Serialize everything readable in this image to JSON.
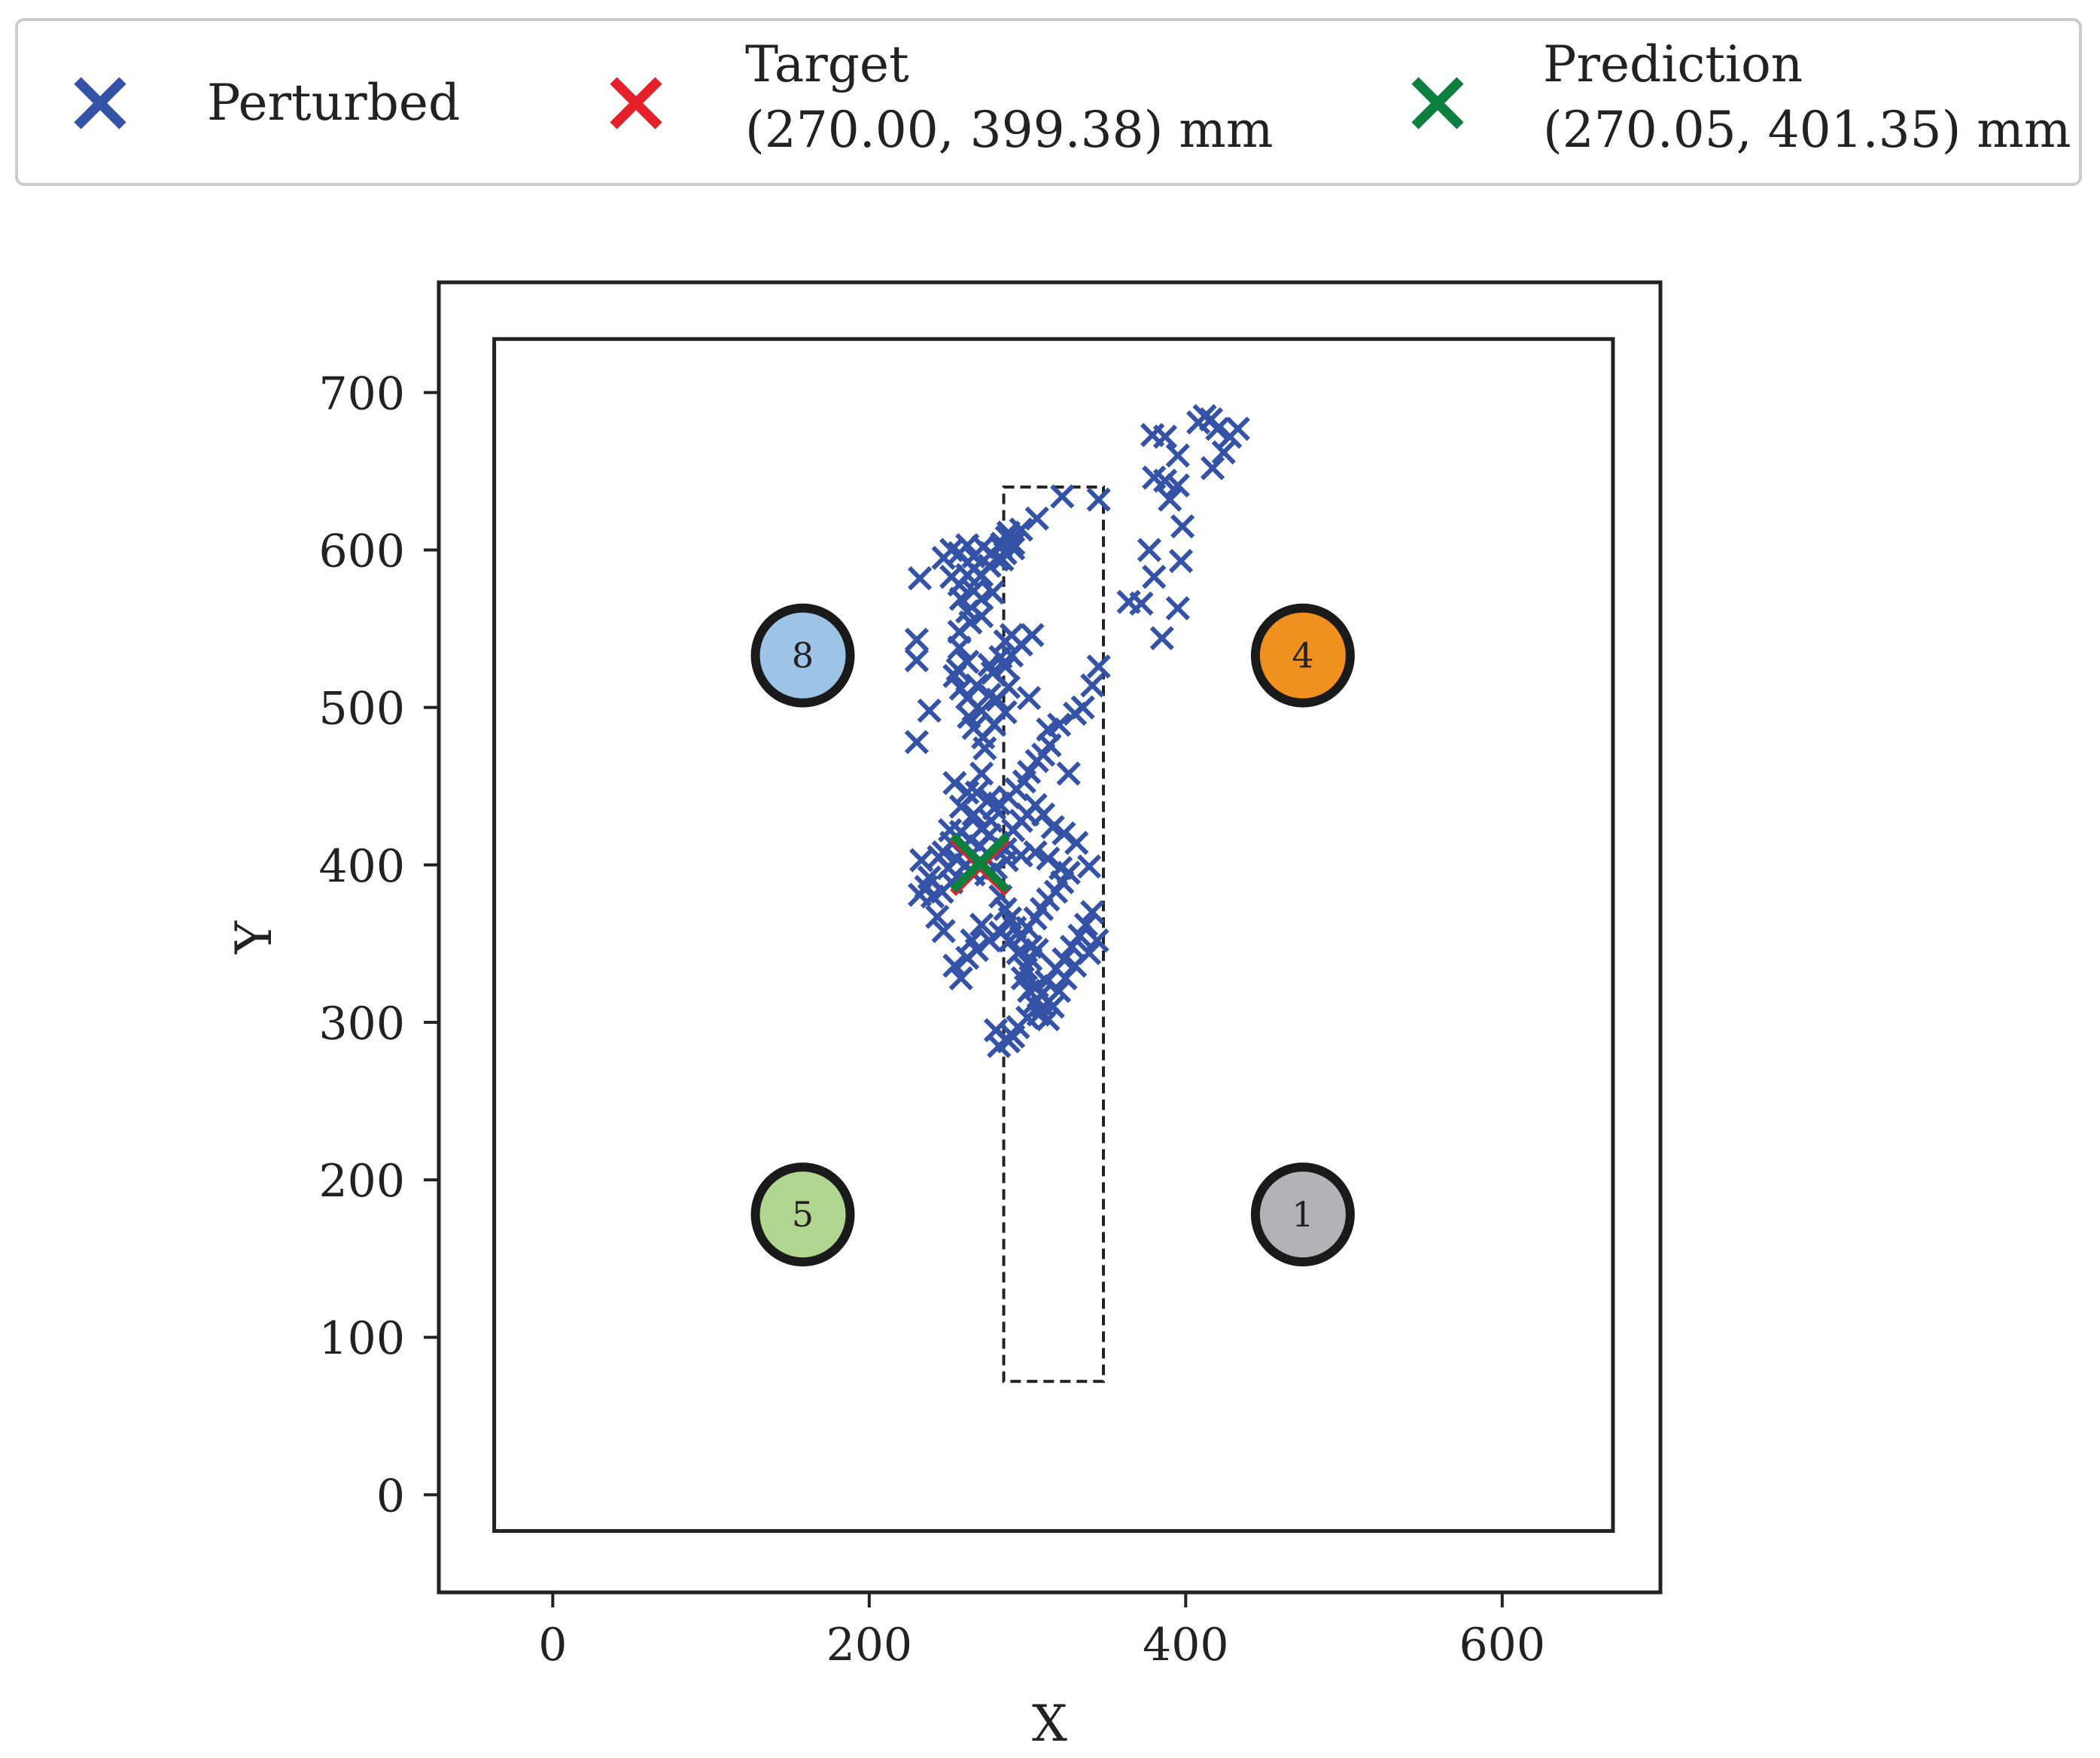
{
  "chart_data": {
    "type": "scatter",
    "title": "",
    "xlabel": "X",
    "ylabel": "Y",
    "xlim": [
      -72,
      700
    ],
    "ylim": [
      -62,
      770
    ],
    "xticks": [
      0,
      200,
      400,
      600
    ],
    "yticks": [
      0,
      100,
      200,
      300,
      400,
      500,
      600,
      700
    ],
    "grid": false,
    "legend_position": "top",
    "legend": [
      {
        "label_lines": [
          "Perturbed"
        ],
        "color": "#3553a6"
      },
      {
        "label_lines": [
          "Target",
          "(270.00, 399.38) mm"
        ],
        "color": "#e4202a"
      },
      {
        "label_lines": [
          "Prediction",
          "(270.05, 401.35) mm"
        ],
        "color": "#0d8040"
      }
    ],
    "arena_border": {
      "x": [
        -37,
        670
      ],
      "y": [
        -23,
        734
      ]
    },
    "dashed_region": {
      "x": [
        285,
        348
      ],
      "y": [
        72,
        640
      ]
    },
    "markers": [
      {
        "label": "8",
        "x": 158,
        "y": 533,
        "fill": "#9dc3e6",
        "edge": "#1a1a1a"
      },
      {
        "label": "4",
        "x": 474,
        "y": 533,
        "fill": "#f0901e",
        "edge": "#1a1a1a"
      },
      {
        "label": "5",
        "x": 158,
        "y": 178,
        "fill": "#b0d68f",
        "edge": "#1a1a1a"
      },
      {
        "label": "1",
        "x": 474,
        "y": 178,
        "fill": "#b3b3b5",
        "edge": "#1a1a1a"
      }
    ],
    "series": [
      {
        "name": "Perturbed",
        "color": "#3553a6",
        "points": [
          [
            232,
            582
          ],
          [
            247,
            595
          ],
          [
            252,
            600
          ],
          [
            257,
            598
          ],
          [
            262,
            603
          ],
          [
            266,
            596
          ],
          [
            272,
            602
          ],
          [
            277,
            598
          ],
          [
            283,
            602
          ],
          [
            287,
            608
          ],
          [
            252,
            583
          ],
          [
            257,
            578
          ],
          [
            262,
            584
          ],
          [
            266,
            588
          ],
          [
            271,
            584
          ],
          [
            276,
            590
          ],
          [
            281,
            594
          ],
          [
            286,
            598
          ],
          [
            291,
            601
          ],
          [
            258,
            569
          ],
          [
            262,
            561
          ],
          [
            266,
            574
          ],
          [
            271,
            569
          ],
          [
            278,
            573
          ],
          [
            284,
            604
          ],
          [
            288,
            611
          ],
          [
            296,
            613
          ],
          [
            306,
            620
          ],
          [
            284,
            594
          ],
          [
            291,
            604
          ],
          [
            257,
            548
          ],
          [
            264,
            554
          ],
          [
            271,
            558
          ],
          [
            230,
            543
          ],
          [
            230,
            530
          ],
          [
            257,
            538
          ],
          [
            262,
            529
          ],
          [
            254,
            520
          ],
          [
            258,
            512
          ],
          [
            262,
            506
          ],
          [
            268,
            514
          ],
          [
            271,
            498
          ],
          [
            263,
            494
          ],
          [
            256,
            524
          ],
          [
            276,
            527
          ],
          [
            283,
            532
          ],
          [
            290,
            533
          ],
          [
            286,
            526
          ],
          [
            290,
            546
          ],
          [
            296,
            540
          ],
          [
            303,
            546
          ],
          [
            286,
            542
          ],
          [
            278,
            522
          ],
          [
            276,
            508
          ],
          [
            281,
            505
          ],
          [
            288,
            513
          ],
          [
            238,
            498
          ],
          [
            230,
            478
          ],
          [
            266,
            487
          ],
          [
            272,
            481
          ],
          [
            279,
            489
          ],
          [
            286,
            497
          ],
          [
            273,
            474
          ],
          [
            301,
            506
          ],
          [
            313,
            486
          ],
          [
            320,
            489
          ],
          [
            330,
            496
          ],
          [
            335,
            500
          ],
          [
            341,
            514
          ],
          [
            345,
            526
          ],
          [
            254,
            452
          ],
          [
            262,
            446
          ],
          [
            258,
            437
          ],
          [
            266,
            432
          ],
          [
            271,
            423
          ],
          [
            277,
            428
          ],
          [
            282,
            439
          ],
          [
            288,
            443
          ],
          [
            293,
            448
          ],
          [
            298,
            453
          ],
          [
            301,
            459
          ],
          [
            306,
            466
          ],
          [
            310,
            470
          ],
          [
            314,
            476
          ],
          [
            326,
            458
          ],
          [
            251,
            422
          ],
          [
            247,
            408
          ],
          [
            252,
            414
          ],
          [
            258,
            421
          ],
          [
            264,
            416
          ],
          [
            270,
            412
          ],
          [
            276,
            419
          ],
          [
            281,
            414
          ],
          [
            286,
            410
          ],
          [
            291,
            422
          ],
          [
            296,
            428
          ],
          [
            300,
            432
          ],
          [
            305,
            438
          ],
          [
            310,
            432
          ],
          [
            316,
            424
          ],
          [
            323,
            420
          ],
          [
            331,
            414
          ],
          [
            339,
            399
          ],
          [
            321,
            398
          ],
          [
            313,
            404
          ],
          [
            305,
            408
          ],
          [
            296,
            406
          ],
          [
            287,
            403
          ],
          [
            280,
            398
          ],
          [
            274,
            394
          ],
          [
            266,
            394
          ],
          [
            261,
            400
          ],
          [
            255,
            404
          ],
          [
            250,
            398
          ],
          [
            244,
            405
          ],
          [
            238,
            392
          ],
          [
            233,
            403
          ],
          [
            236,
            386
          ],
          [
            232,
            381
          ],
          [
            240,
            380
          ],
          [
            246,
            383
          ],
          [
            252,
            389
          ],
          [
            276,
            442
          ],
          [
            279,
            436
          ],
          [
            271,
            458
          ],
          [
            268,
            446
          ],
          [
            283,
            380
          ],
          [
            286,
            372
          ],
          [
            289,
            366
          ],
          [
            292,
            360
          ],
          [
            296,
            354
          ],
          [
            300,
            360
          ],
          [
            305,
            366
          ],
          [
            309,
            372
          ],
          [
            313,
            378
          ],
          [
            318,
            383
          ],
          [
            322,
            389
          ],
          [
            326,
            395
          ],
          [
            306,
            346
          ],
          [
            302,
            340
          ],
          [
            299,
            334
          ],
          [
            297,
            328
          ],
          [
            301,
            320
          ],
          [
            304,
            312
          ],
          [
            307,
            305
          ],
          [
            313,
            302
          ],
          [
            316,
            310
          ],
          [
            309,
            318
          ],
          [
            312,
            326
          ],
          [
            318,
            334
          ],
          [
            323,
            340
          ],
          [
            328,
            348
          ],
          [
            333,
            355
          ],
          [
            337,
            362
          ],
          [
            341,
            370
          ],
          [
            344,
            352
          ],
          [
            339,
            344
          ],
          [
            330,
            336
          ],
          [
            324,
            328
          ],
          [
            320,
            320
          ],
          [
            310,
            310
          ],
          [
            302,
            348
          ],
          [
            294,
            344
          ],
          [
            289,
            352
          ],
          [
            283,
            357
          ],
          [
            276,
            352
          ],
          [
            268,
            346
          ],
          [
            262,
            341
          ],
          [
            254,
            336
          ],
          [
            258,
            328
          ],
          [
            265,
            352
          ],
          [
            271,
            362
          ],
          [
            247,
            358
          ],
          [
            243,
            367
          ],
          [
            280,
            295
          ],
          [
            288,
            288
          ],
          [
            282,
            285
          ],
          [
            291,
            291
          ],
          [
            294,
            297
          ],
          [
            300,
            303
          ],
          [
            306,
            323
          ],
          [
            322,
            634
          ],
          [
            345,
            632
          ],
          [
            364,
            567
          ],
          [
            372,
            566
          ],
          [
            385,
            544
          ],
          [
            395,
            563
          ],
          [
            397,
            593
          ],
          [
            380,
            583
          ],
          [
            377,
            600
          ],
          [
            398,
            615
          ],
          [
            390,
            632
          ],
          [
            395,
            641
          ],
          [
            387,
            644
          ],
          [
            380,
            646
          ],
          [
            395,
            660
          ],
          [
            387,
            672
          ],
          [
            379,
            673
          ],
          [
            408,
            681
          ],
          [
            416,
            683
          ],
          [
            420,
            677
          ],
          [
            428,
            672
          ],
          [
            433,
            677
          ],
          [
            424,
            662
          ],
          [
            417,
            652
          ],
          [
            412,
            685
          ]
        ]
      },
      {
        "name": "Target",
        "color": "#e4202a",
        "points": [
          [
            270.0,
            399.38
          ]
        ]
      },
      {
        "name": "Prediction",
        "color": "#0d8040",
        "points": [
          [
            270.05,
            401.35
          ]
        ]
      }
    ]
  }
}
